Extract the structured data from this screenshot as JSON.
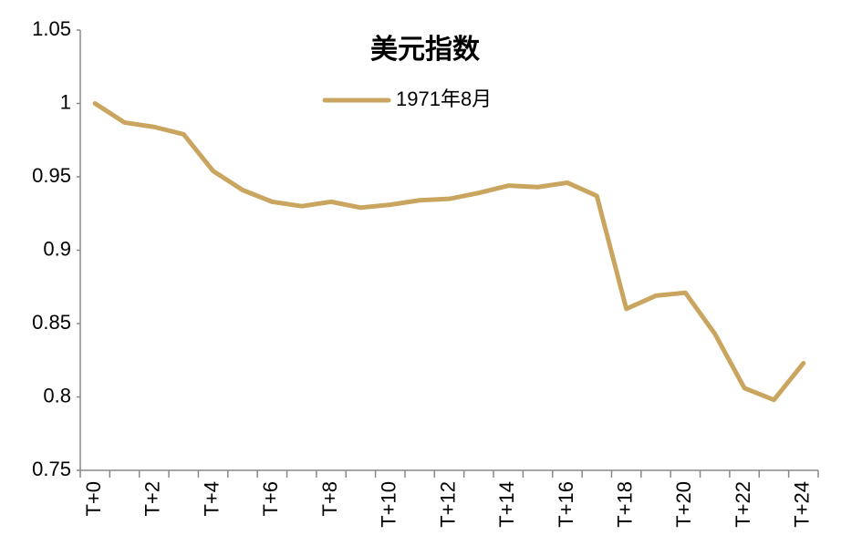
{
  "chart_data": {
    "type": "line",
    "title": "美元指数",
    "categories": [
      "T+0",
      null,
      "T+2",
      null,
      "T+4",
      null,
      "T+6",
      null,
      "T+8",
      null,
      "T+10",
      null,
      "T+12",
      null,
      "T+14",
      null,
      "T+16",
      null,
      "T+18",
      null,
      "T+20",
      null,
      "T+22",
      null,
      "T+24"
    ],
    "series": [
      {
        "name": "1971年8月",
        "color": "#c9a55f",
        "values": [
          1.0,
          0.987,
          0.984,
          0.979,
          0.954,
          0.941,
          0.933,
          0.93,
          0.933,
          0.929,
          0.931,
          0.934,
          0.935,
          0.939,
          0.944,
          0.943,
          0.946,
          0.937,
          0.86,
          0.869,
          0.871,
          0.843,
          0.806,
          0.798,
          0.823
        ]
      }
    ],
    "ylim": [
      0.75,
      1.05
    ],
    "yticks": [
      0.75,
      0.8,
      0.85,
      0.9,
      0.95,
      1,
      1.05
    ],
    "grid": false,
    "legend": "top"
  }
}
